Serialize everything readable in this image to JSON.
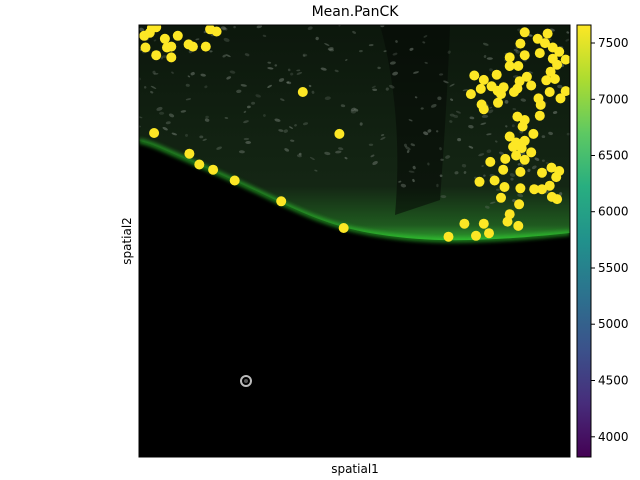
{
  "chart_data": {
    "type": "scatter",
    "title": "Mean.PanCK",
    "xlabel": "spatial1",
    "ylabel": "spatial2",
    "colorbar": {
      "colormap": "viridis",
      "range": [
        3820,
        7660
      ],
      "ticks": [
        4000,
        4500,
        5000,
        5500,
        6000,
        6500,
        7000,
        7500
      ],
      "tick_labels": [
        "4000",
        "4500",
        "5000",
        "5500",
        "6000",
        "6500",
        "7000",
        "7500"
      ]
    },
    "point_color": "#fde725",
    "background": "fluorescence tissue image (dark, green PanCK stain along tissue edge)",
    "x_range": [
      0,
      1
    ],
    "y_range": [
      0,
      1
    ],
    "points": [
      {
        "x": 0.03,
        "y": 0.993,
        "v": 7620
      },
      {
        "x": 0.04,
        "y": 0.995,
        "v": 7620
      },
      {
        "x": 0.012,
        "y": 0.975,
        "v": 7600
      },
      {
        "x": 0.025,
        "y": 0.982,
        "v": 7600
      },
      {
        "x": 0.06,
        "y": 0.968,
        "v": 7600
      },
      {
        "x": 0.09,
        "y": 0.975,
        "v": 7600
      },
      {
        "x": 0.165,
        "y": 0.99,
        "v": 7620
      },
      {
        "x": 0.18,
        "y": 0.985,
        "v": 7600
      },
      {
        "x": 0.015,
        "y": 0.948,
        "v": 7600
      },
      {
        "x": 0.04,
        "y": 0.93,
        "v": 7600
      },
      {
        "x": 0.065,
        "y": 0.948,
        "v": 7600
      },
      {
        "x": 0.075,
        "y": 0.95,
        "v": 7600
      },
      {
        "x": 0.075,
        "y": 0.925,
        "v": 7600
      },
      {
        "x": 0.115,
        "y": 0.955,
        "v": 7600
      },
      {
        "x": 0.125,
        "y": 0.95,
        "v": 7600
      },
      {
        "x": 0.155,
        "y": 0.95,
        "v": 7600
      },
      {
        "x": 0.38,
        "y": 0.845,
        "v": 7600
      },
      {
        "x": 0.035,
        "y": 0.75,
        "v": 7600
      },
      {
        "x": 0.465,
        "y": 0.748,
        "v": 7600
      },
      {
        "x": 0.117,
        "y": 0.702,
        "v": 7600
      },
      {
        "x": 0.14,
        "y": 0.677,
        "v": 7600
      },
      {
        "x": 0.172,
        "y": 0.665,
        "v": 7600
      },
      {
        "x": 0.222,
        "y": 0.64,
        "v": 7600
      },
      {
        "x": 0.33,
        "y": 0.592,
        "v": 7600
      },
      {
        "x": 0.475,
        "y": 0.53,
        "v": 7600
      },
      {
        "x": 0.718,
        "y": 0.51,
        "v": 7600
      },
      {
        "x": 0.755,
        "y": 0.54,
        "v": 7600
      },
      {
        "x": 0.782,
        "y": 0.512,
        "v": 7600
      },
      {
        "x": 0.8,
        "y": 0.54,
        "v": 7600
      },
      {
        "x": 0.812,
        "y": 0.518,
        "v": 7600
      },
      {
        "x": 0.855,
        "y": 0.545,
        "v": 7600
      },
      {
        "x": 0.88,
        "y": 0.535,
        "v": 7600
      },
      {
        "x": 0.86,
        "y": 0.562,
        "v": 7600
      },
      {
        "x": 0.882,
        "y": 0.585,
        "v": 7600
      },
      {
        "x": 0.84,
        "y": 0.6,
        "v": 7600
      },
      {
        "x": 0.79,
        "y": 0.637,
        "v": 7600
      },
      {
        "x": 0.825,
        "y": 0.64,
        "v": 7600
      },
      {
        "x": 0.848,
        "y": 0.625,
        "v": 7600
      },
      {
        "x": 0.885,
        "y": 0.622,
        "v": 7600
      },
      {
        "x": 0.917,
        "y": 0.62,
        "v": 7600
      },
      {
        "x": 0.935,
        "y": 0.62,
        "v": 7600
      },
      {
        "x": 0.958,
        "y": 0.602,
        "v": 7600
      },
      {
        "x": 0.97,
        "y": 0.597,
        "v": 7600
      },
      {
        "x": 0.953,
        "y": 0.628,
        "v": 7600
      },
      {
        "x": 0.968,
        "y": 0.648,
        "v": 7600
      },
      {
        "x": 0.957,
        "y": 0.67,
        "v": 7600
      },
      {
        "x": 0.975,
        "y": 0.662,
        "v": 7600
      },
      {
        "x": 0.935,
        "y": 0.658,
        "v": 7600
      },
      {
        "x": 0.885,
        "y": 0.66,
        "v": 7600
      },
      {
        "x": 0.845,
        "y": 0.665,
        "v": 7600
      },
      {
        "x": 0.815,
        "y": 0.683,
        "v": 7600
      },
      {
        "x": 0.85,
        "y": 0.69,
        "v": 7600
      },
      {
        "x": 0.875,
        "y": 0.698,
        "v": 7600
      },
      {
        "x": 0.895,
        "y": 0.688,
        "v": 7600
      },
      {
        "x": 0.91,
        "y": 0.705,
        "v": 7600
      },
      {
        "x": 0.875,
        "y": 0.728,
        "v": 7600
      },
      {
        "x": 0.86,
        "y": 0.742,
        "v": 7600
      },
      {
        "x": 0.895,
        "y": 0.732,
        "v": 7600
      },
      {
        "x": 0.868,
        "y": 0.718,
        "v": 7600
      },
      {
        "x": 0.888,
        "y": 0.715,
        "v": 7600
      },
      {
        "x": 0.915,
        "y": 0.748,
        "v": 7600
      },
      {
        "x": 0.89,
        "y": 0.765,
        "v": 7600
      },
      {
        "x": 0.878,
        "y": 0.788,
        "v": 7600
      },
      {
        "x": 0.895,
        "y": 0.78,
        "v": 7600
      },
      {
        "x": 0.93,
        "y": 0.79,
        "v": 7600
      },
      {
        "x": 0.927,
        "y": 0.83,
        "v": 7600
      },
      {
        "x": 0.932,
        "y": 0.815,
        "v": 7600
      },
      {
        "x": 0.953,
        "y": 0.845,
        "v": 7600
      },
      {
        "x": 0.978,
        "y": 0.83,
        "v": 7600
      },
      {
        "x": 0.99,
        "y": 0.847,
        "v": 7600
      },
      {
        "x": 0.87,
        "y": 0.845,
        "v": 7600
      },
      {
        "x": 0.84,
        "y": 0.84,
        "v": 7600
      },
      {
        "x": 0.833,
        "y": 0.82,
        "v": 7600
      },
      {
        "x": 0.795,
        "y": 0.816,
        "v": 7600
      },
      {
        "x": 0.8,
        "y": 0.805,
        "v": 7600
      },
      {
        "x": 0.878,
        "y": 0.853,
        "v": 7600
      },
      {
        "x": 0.818,
        "y": 0.858,
        "v": 7600
      },
      {
        "x": 0.832,
        "y": 0.848,
        "v": 7600
      },
      {
        "x": 0.846,
        "y": 0.856,
        "v": 7600
      },
      {
        "x": 0.8,
        "y": 0.873,
        "v": 7600
      },
      {
        "x": 0.83,
        "y": 0.885,
        "v": 7600
      },
      {
        "x": 0.778,
        "y": 0.883,
        "v": 7600
      },
      {
        "x": 0.77,
        "y": 0.84,
        "v": 7600
      },
      {
        "x": 0.793,
        "y": 0.852,
        "v": 7600
      },
      {
        "x": 0.883,
        "y": 0.87,
        "v": 7600
      },
      {
        "x": 0.9,
        "y": 0.88,
        "v": 7600
      },
      {
        "x": 0.91,
        "y": 0.86,
        "v": 7600
      },
      {
        "x": 0.945,
        "y": 0.872,
        "v": 7600
      },
      {
        "x": 0.965,
        "y": 0.875,
        "v": 7600
      },
      {
        "x": 0.955,
        "y": 0.892,
        "v": 7600
      },
      {
        "x": 0.97,
        "y": 0.908,
        "v": 7600
      },
      {
        "x": 0.96,
        "y": 0.922,
        "v": 7600
      },
      {
        "x": 0.93,
        "y": 0.935,
        "v": 7600
      },
      {
        "x": 0.895,
        "y": 0.93,
        "v": 7600
      },
      {
        "x": 0.86,
        "y": 0.925,
        "v": 7600
      },
      {
        "x": 0.885,
        "y": 0.957,
        "v": 7600
      },
      {
        "x": 0.925,
        "y": 0.968,
        "v": 7600
      },
      {
        "x": 0.895,
        "y": 0.983,
        "v": 7600
      },
      {
        "x": 0.942,
        "y": 0.958,
        "v": 7600
      },
      {
        "x": 0.948,
        "y": 0.98,
        "v": 7600
      },
      {
        "x": 0.96,
        "y": 0.948,
        "v": 7600
      },
      {
        "x": 0.975,
        "y": 0.938,
        "v": 7600
      },
      {
        "x": 0.99,
        "y": 0.92,
        "v": 7600
      },
      {
        "x": 0.88,
        "y": 0.905,
        "v": 7600
      },
      {
        "x": 0.86,
        "y": 0.905,
        "v": 7600
      }
    ]
  }
}
